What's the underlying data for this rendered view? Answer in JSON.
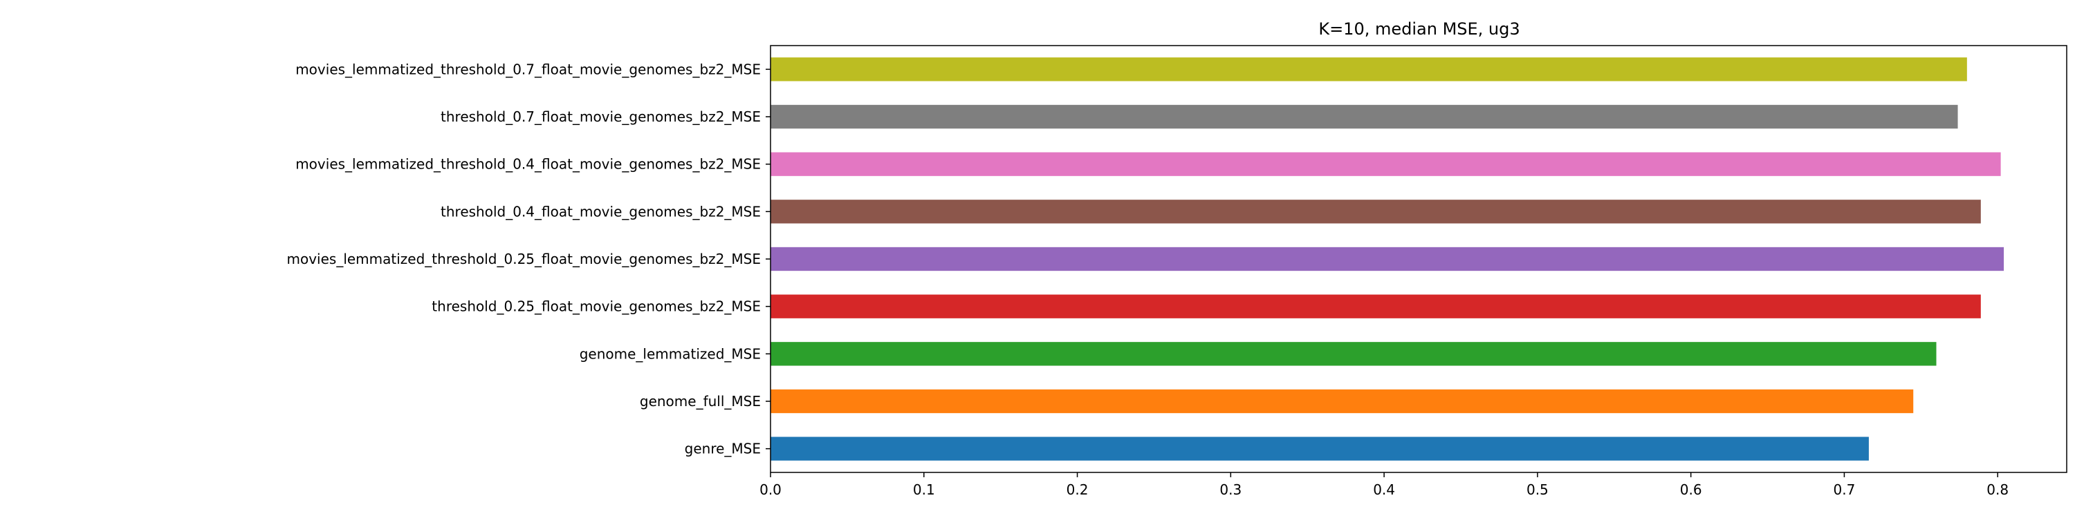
{
  "chart_data": {
    "type": "bar",
    "orientation": "horizontal",
    "title": "K=10, median MSE, ug3",
    "xlabel": "",
    "ylabel": "",
    "xlim": [
      0.0,
      0.845
    ],
    "xticks": [
      0.0,
      0.1,
      0.2,
      0.3,
      0.4,
      0.5,
      0.6,
      0.7,
      0.8
    ],
    "xtick_labels": [
      "0.0",
      "0.1",
      "0.2",
      "0.3",
      "0.4",
      "0.5",
      "0.6",
      "0.7",
      "0.8"
    ],
    "grid": false,
    "categories": [
      "genre_MSE",
      "genome_full_MSE",
      "genome_lemmatized_MSE",
      "threshold_0.25_float_movie_genomes_bz2_MSE",
      "movies_lemmatized_threshold_0.25_float_movie_genomes_bz2_MSE",
      "threshold_0.4_float_movie_genomes_bz2_MSE",
      "movies_lemmatized_threshold_0.4_float_movie_genomes_bz2_MSE",
      "threshold_0.7_float_movie_genomes_bz2_MSE",
      "movies_lemmatized_threshold_0.7_float_movie_genomes_bz2_MSE"
    ],
    "values": [
      0.716,
      0.745,
      0.76,
      0.789,
      0.804,
      0.789,
      0.802,
      0.774,
      0.78
    ],
    "colors": [
      "#1f77b4",
      "#ff7f0e",
      "#2ca02c",
      "#d62728",
      "#9467bd",
      "#8c564b",
      "#e377c2",
      "#7f7f7f",
      "#bcbd22"
    ]
  }
}
